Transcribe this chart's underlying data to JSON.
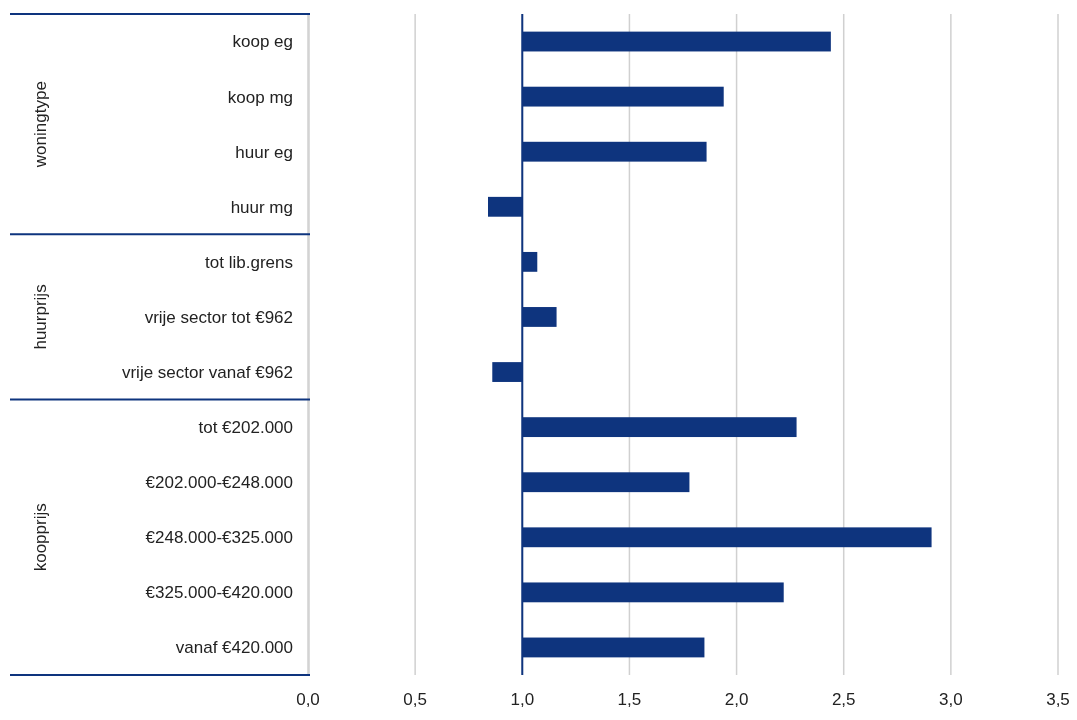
{
  "chart_data": {
    "type": "bar",
    "orientation": "horizontal",
    "categories": [
      "koop eg",
      "koop mg",
      "huur eg",
      "huur mg",
      "tot lib.grens",
      "vrije sector tot €962",
      "vrije sector vanaf €962",
      "tot €202.000",
      "€202.000-€248.000",
      "€248.000-€325.000",
      "€325.000-€420.000",
      "vanaf €420.000"
    ],
    "base": [
      1,
      1,
      1,
      1,
      1,
      1,
      1,
      1,
      1,
      1,
      1,
      1
    ],
    "values": [
      1.44,
      0.94,
      0.86,
      -0.16,
      0.07,
      0.16,
      -0.14,
      1.28,
      0.78,
      1.91,
      1.22,
      0.85
    ],
    "color": "#0e347e",
    "xlim": [
      0,
      3.5
    ],
    "xticks": [
      {
        "value": 0,
        "label": "0,0"
      },
      {
        "value": 0.5,
        "label": "0,5"
      },
      {
        "value": 1,
        "label": "1,0"
      },
      {
        "value": 1.5,
        "label": "1,5"
      },
      {
        "value": 2,
        "label": "2,0"
      },
      {
        "value": 2.5,
        "label": "2,5"
      },
      {
        "value": 3,
        "label": "3,0"
      },
      {
        "value": 3.5,
        "label": "3,5"
      }
    ],
    "grid": "x",
    "ref_lines": [
      {
        "axis": "x",
        "value": 1,
        "color": "#0e347e"
      }
    ],
    "annotations": [
      "woningtype",
      "huurprijs",
      "koopprijs"
    ]
  }
}
